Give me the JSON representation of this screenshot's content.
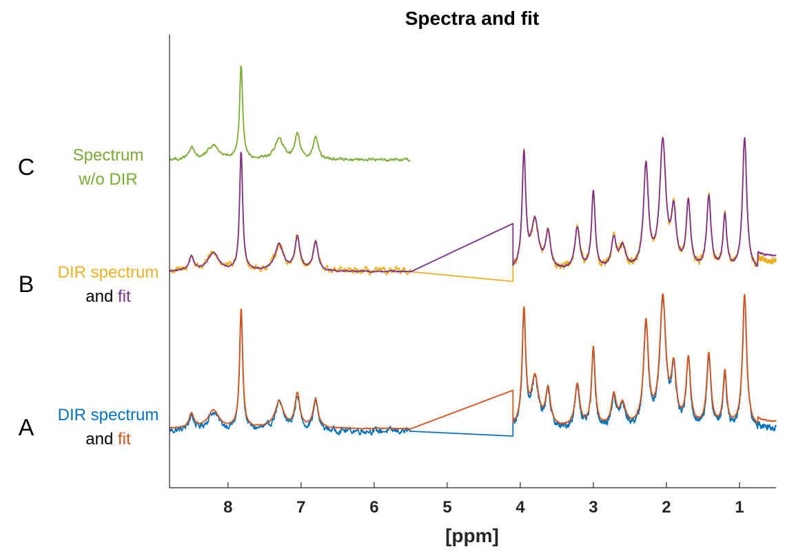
{
  "chart_data": {
    "type": "line",
    "title": "Spectra and fit",
    "xlabel": "[ppm]",
    "ylabel": "",
    "xlim": [
      8.8,
      0.5
    ],
    "x_reversed": true,
    "xticks": [
      8,
      7,
      6,
      5,
      4,
      3,
      2,
      1
    ],
    "y_ticks_shown": false,
    "grid": false,
    "colors": {
      "blue": "#0072BD",
      "orange": "#D95319",
      "yellow": "#EDB120",
      "purple": "#7E2F8E",
      "green": "#77AC30",
      "axis": "#262626"
    },
    "peaks": [
      {
        "ppm": 8.5,
        "a": 0.12,
        "w": 0.04
      },
      {
        "ppm": 8.2,
        "a": 0.15,
        "w": 0.09
      },
      {
        "ppm": 7.82,
        "a": 1.0,
        "w": 0.025
      },
      {
        "ppm": 7.3,
        "a": 0.22,
        "w": 0.07
      },
      {
        "ppm": 7.05,
        "a": 0.28,
        "w": 0.04
      },
      {
        "ppm": 6.8,
        "a": 0.24,
        "w": 0.04
      },
      {
        "ppm": 3.95,
        "a": 0.95,
        "w": 0.03
      },
      {
        "ppm": 3.8,
        "a": 0.4,
        "w": 0.06
      },
      {
        "ppm": 3.62,
        "a": 0.3,
        "w": 0.04
      },
      {
        "ppm": 3.22,
        "a": 0.35,
        "w": 0.04
      },
      {
        "ppm": 3.0,
        "a": 0.65,
        "w": 0.03
      },
      {
        "ppm": 2.72,
        "a": 0.25,
        "w": 0.04
      },
      {
        "ppm": 2.6,
        "a": 0.18,
        "w": 0.05
      },
      {
        "ppm": 2.28,
        "a": 0.85,
        "w": 0.04
      },
      {
        "ppm": 2.05,
        "a": 1.05,
        "w": 0.05
      },
      {
        "ppm": 1.9,
        "a": 0.45,
        "w": 0.04
      },
      {
        "ppm": 1.7,
        "a": 0.55,
        "w": 0.035
      },
      {
        "ppm": 1.42,
        "a": 0.6,
        "w": 0.035
      },
      {
        "ppm": 1.2,
        "a": 0.45,
        "w": 0.03
      },
      {
        "ppm": 0.93,
        "a": 1.1,
        "w": 0.035
      }
    ],
    "gap": {
      "from": 5.5,
      "to": 4.1
    },
    "series": [
      {
        "name": "DIR spectrum (A)",
        "group": "A",
        "color": "#0072BD",
        "baseline": 0.08,
        "noise": 0.022,
        "scale": 1.0,
        "gap_left": 0.08,
        "gap_right": 0.04,
        "tail": 0.02
      },
      {
        "name": "fit (A)",
        "group": "A",
        "color": "#D95319",
        "baseline": 0.1,
        "noise": 0.004,
        "scale": 1.0,
        "gap_left": 0.1,
        "gap_right": 0.42,
        "tail": 0.05
      },
      {
        "name": "DIR spectrum (B)",
        "group": "B",
        "color": "#EDB120",
        "baseline": 0.1,
        "noise": 0.025,
        "scale": 1.0,
        "gap_left": 0.1,
        "gap_right": 0.02,
        "tail": 0.08
      },
      {
        "name": "fit (B)",
        "group": "B",
        "color": "#7E2F8E",
        "baseline": 0.1,
        "noise": 0.005,
        "scale": 1.0,
        "gap_left": 0.1,
        "gap_right": 0.5,
        "tail": 0.12
      },
      {
        "name": "Spectrum w/o DIR (C)",
        "group": "C",
        "color": "#77AC30",
        "baseline": 0.1,
        "noise": 0.01,
        "scale": 0.75,
        "gap_left": null,
        "gap_right": null,
        "tail": null,
        "range": [
          8.8,
          5.5
        ]
      }
    ]
  },
  "labels": {
    "C": {
      "letter": "C",
      "line1": "Spectrum",
      "line2": "w/o DIR"
    },
    "B": {
      "letter": "B",
      "line1": "DIR spectrum",
      "line2_prefix": "and ",
      "line2_fit": "fit"
    },
    "A": {
      "letter": "A",
      "line1": "DIR spectrum",
      "line2_prefix": "and ",
      "line2_fit": "fit"
    }
  }
}
